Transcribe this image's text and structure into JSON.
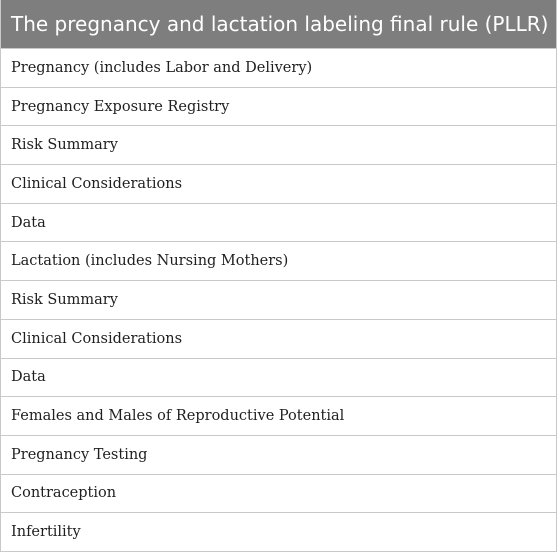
{
  "table": {
    "header": "The pregnancy and lactation labeling final rule (PLLR)",
    "rows": [
      "Pregnancy (includes Labor and Delivery)",
      "Pregnancy Exposure Registry",
      "Risk Summary",
      "Clinical Considerations",
      "Data",
      "Lactation (includes Nursing Mothers)",
      "Risk Summary",
      "Clinical Considerations",
      "Data",
      "Females and Males of Reproductive Potential",
      "Pregnancy Testing",
      "Contraception",
      "Infertility"
    ]
  }
}
